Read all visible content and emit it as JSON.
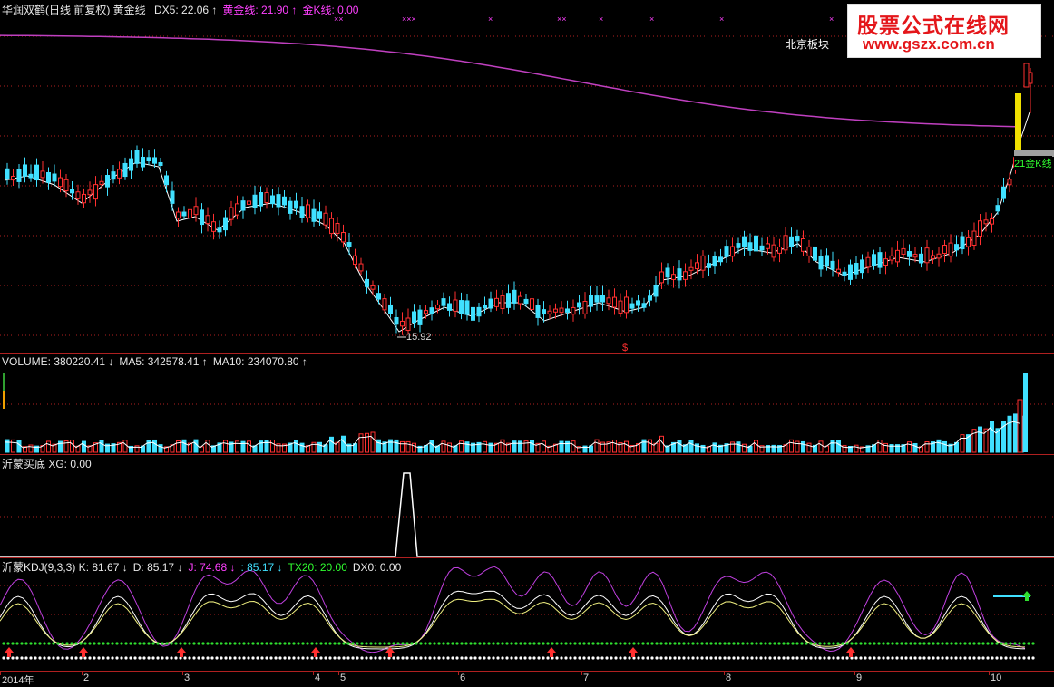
{
  "main": {
    "title": "华润双鹤(日线 前复权) 黄金线",
    "indicators": [
      {
        "label": "DX5: 22.06",
        "arrow": "↑",
        "color": "#e8e8e8"
      },
      {
        "label": "黄金线: 21.90",
        "arrow": "↑",
        "color": "#ff40ff"
      },
      {
        "label": "金K线: 0.00",
        "arrow": "",
        "color": "#ff40ff"
      }
    ],
    "marker_text": "×",
    "sector_label": "北京板块",
    "low_label": "15.92",
    "right_tag": "21金K线",
    "dollar_marker": "$"
  },
  "watermark": {
    "line1": "股票公式在线网",
    "line2": "www.gszx.com.cn"
  },
  "volume": {
    "items": [
      {
        "label": "VOLUME: 380220.41",
        "arrow": "↓",
        "color": "#e8e8e8"
      },
      {
        "label": "MA5: 342578.41",
        "arrow": "↑",
        "color": "#e8e8e8"
      },
      {
        "label": "MA10: 234070.80",
        "arrow": "↑",
        "color": "#e8e8e8"
      }
    ]
  },
  "xg": {
    "label": "沂蒙买底 XG: 0.00"
  },
  "kdj": {
    "items": [
      {
        "label": "沂蒙KDJ(9,3,3) K: 81.67",
        "arrow": "↓",
        "color": "#e8e8e8"
      },
      {
        "label": "D: 85.17",
        "arrow": "↓",
        "color": "#e8e8e8"
      },
      {
        "label": "J: 74.68",
        "arrow": "↓",
        "color": "#ff40ff"
      },
      {
        "label": ": 85.17",
        "arrow": "↓",
        "color": "#40e0ff"
      },
      {
        "label": "TX20: 20.00",
        "arrow": "",
        "color": "#30ff30"
      },
      {
        "label": "DX0: 0.00",
        "arrow": "",
        "color": "#e8e8e8"
      }
    ]
  },
  "xaxis": {
    "labels": [
      "2014年",
      "2",
      "3",
      "4",
      "5",
      "6",
      "7",
      "8",
      "9",
      "10"
    ]
  },
  "colors": {
    "up": "#ff3030",
    "down": "#40e0ff",
    "ma": "#ffffff",
    "gold_line": "#c040c0",
    "grid": "#b02020"
  }
}
